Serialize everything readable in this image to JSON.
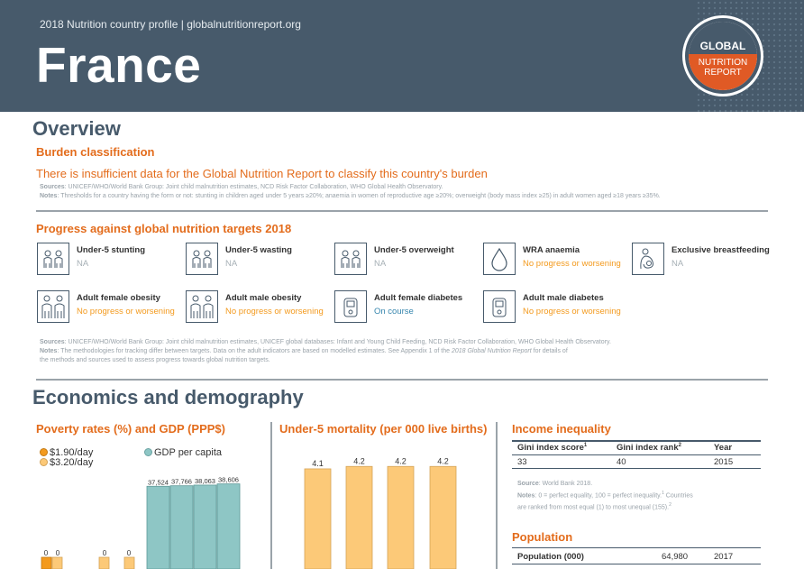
{
  "header": {
    "profile_line": "2018 Nutrition country profile  |  globalnutritionreport.org",
    "country": "France",
    "logo": {
      "line1": "GLOBAL",
      "line2": "NUTRITION",
      "line3": "REPORT"
    }
  },
  "overview": {
    "title": "Overview",
    "burden_heading": "Burden classification",
    "burden_text": "There is insufficient data for the Global Nutrition Report to classify this country's burden",
    "sources_label": "Sources",
    "sources_text": ": UNICEF/WHO/World Bank Group: Joint child malnutrition estimates, NCD Risk Factor Collaboration, WHO Global Health Observatory.",
    "notes_label": "Notes",
    "notes_text": ": Thresholds for a country having the form or not: stunting in children aged under 5 years ≥20%; anaemia in women of reproductive age ≥20%; overweight (body mass index ≥25) in adult women aged ≥18 years ≥35%."
  },
  "progress": {
    "heading": "Progress against global nutrition targets 2018",
    "targets": [
      {
        "name": "Under-5 stunting",
        "status": "NA",
        "cls": "na",
        "icon": "children-icon"
      },
      {
        "name": "Under-5 wasting",
        "status": "NA",
        "cls": "na",
        "icon": "children-icon"
      },
      {
        "name": "Under-5 overweight",
        "status": "NA",
        "cls": "na",
        "icon": "children-icon"
      },
      {
        "name": "WRA anaemia",
        "status": "No progress or worsening",
        "cls": "nop",
        "icon": "blood-drop-icon"
      },
      {
        "name": "Exclusive breastfeeding",
        "status": "NA",
        "cls": "na",
        "icon": "breastfeeding-icon"
      },
      {
        "name": "Adult female obesity",
        "status": "No progress or worsening",
        "cls": "nop",
        "icon": "adults-icon"
      },
      {
        "name": "Adult male obesity",
        "status": "No progress or worsening",
        "cls": "nop",
        "icon": "adults-icon"
      },
      {
        "name": "Adult female diabetes",
        "status": "On course",
        "cls": "onc",
        "icon": "glucose-meter-icon"
      },
      {
        "name": "Adult male diabetes",
        "status": "No progress or worsening",
        "cls": "nop",
        "icon": "glucose-meter-icon"
      }
    ],
    "sources_label": "Sources",
    "sources_text": ": UNICEF/WHO/World Bank Group: Joint child malnutrition estimates, UNICEF global databases: Infant and Young Child Feeding, NCD Risk Factor Collaboration, WHO Global Health Observatory.",
    "notes_label": "Notes",
    "notes_text": ": The methodologies for tracking differ between targets. Data on the adult indicators are based on modelled estimates. See Appendix 1 of the ",
    "notes_italic": "2018 Global Nutrition Report",
    "notes_text2": " for details of",
    "notes_line2": "the methods and sources used to assess progress towards global nutrition targets."
  },
  "economics": {
    "title": "Economics and demography",
    "poverty_heading": "Poverty rates (%) and GDP (PPP$)",
    "mortality_heading": "Under-5 mortality (per 000 live births)",
    "income_heading": "Income inequality",
    "legend": {
      "p190": "$1.90/day",
      "p320": "$3.20/day",
      "gdp": "GDP per capita"
    },
    "colors": {
      "p190": "#f39a1e",
      "p320": "#fcc978",
      "gdp": "#8ec6c5",
      "mortality": "#fcc978"
    }
  },
  "chart_data": [
    {
      "type": "bar",
      "title": "Poverty rates (%) and GDP (PPP$)",
      "series": [
        {
          "name": "$1.90/day",
          "values": [
            0
          ]
        },
        {
          "name": "$3.20/day",
          "values": [
            0,
            0,
            0
          ]
        },
        {
          "name": "GDP per capita",
          "values_labels": [
            "37,524",
            "37,766",
            "38,063",
            "38,606"
          ]
        }
      ],
      "poverty_labels": [
        "0",
        "0",
        "0",
        "0"
      ],
      "gdp_labels": [
        "37,524",
        "37,766",
        "38,063",
        "38,606"
      ],
      "gdp_values": [
        37524,
        37766,
        38063,
        38606
      ]
    },
    {
      "type": "bar",
      "title": "Under-5 mortality (per 000 live births)",
      "values": [
        4.1,
        4.2,
        4.2,
        4.2
      ],
      "labels": [
        "4.1",
        "4.2",
        "4.2",
        "4.2"
      ]
    }
  ],
  "income": {
    "headers": [
      "Gini index score",
      "Gini index rank",
      "Year"
    ],
    "sup": [
      "1",
      "2",
      ""
    ],
    "row": [
      "33",
      "40",
      "2015"
    ],
    "source_label": "Source",
    "source_text": ": World Bank 2018.",
    "notes_label": "Notes",
    "notes_text": ": 0 = perfect equality, 100 = perfect inequality.",
    "notes_sup1": "1",
    "notes_text2": " Countries",
    "notes_line2": "are ranked from most equal (1) to most unequal (155).",
    "notes_sup2": "2"
  },
  "population": {
    "heading": "Population",
    "label": "Population (000)",
    "value": "64,980",
    "year": "2017"
  }
}
